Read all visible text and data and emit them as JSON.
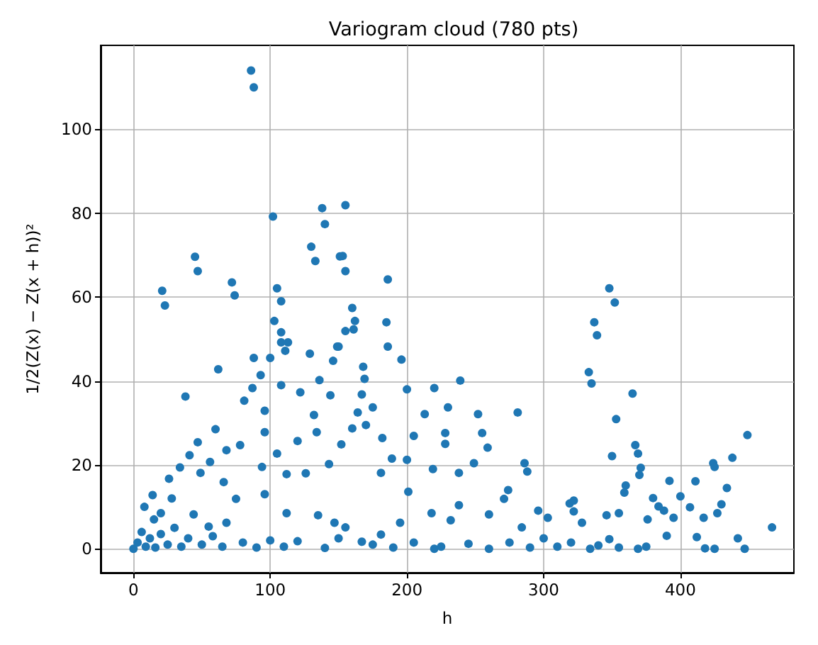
{
  "chart_data": {
    "type": "scatter",
    "title": "Variogram cloud (780 pts)",
    "xlabel": "h",
    "ylabel": "1/2(Z(x) − Z(x + h))²",
    "x": [
      86,
      88,
      102,
      138,
      140,
      130,
      133,
      151,
      45,
      47,
      21,
      23,
      72,
      74,
      105,
      108,
      103,
      108,
      108,
      113,
      111,
      129,
      149,
      88,
      100,
      146,
      155,
      153,
      155,
      186,
      160,
      162,
      161,
      155,
      185,
      150,
      186,
      196,
      348,
      352,
      337,
      339,
      38,
      62,
      60,
      47,
      41,
      14,
      26,
      34,
      93,
      87,
      81,
      96,
      96,
      108,
      122,
      136,
      132,
      144,
      134,
      78,
      68,
      105,
      120,
      56,
      49,
      94,
      66,
      75,
      68,
      55,
      20,
      44,
      112,
      112,
      126,
      135,
      147,
      143,
      96,
      168,
      169,
      167,
      164,
      175,
      200,
      220,
      239,
      230,
      213,
      252,
      281,
      205,
      228,
      255,
      259,
      228,
      286,
      288,
      238,
      249,
      219,
      189,
      200,
      182,
      170,
      160,
      152,
      181,
      201,
      218,
      238,
      260,
      271,
      274,
      296,
      284,
      303,
      319,
      155,
      195,
      181,
      232,
      167,
      220,
      333,
      335,
      365,
      353,
      367,
      369,
      350,
      371,
      370,
      449,
      438,
      424,
      425,
      434,
      411,
      392,
      400,
      380,
      360,
      359,
      384,
      388,
      395,
      376,
      355,
      346,
      322,
      322,
      328,
      407,
      417,
      430,
      427,
      412,
      418,
      425,
      442,
      447,
      467,
      390,
      369,
      348,
      334,
      0,
      3,
      6,
      9,
      12,
      16,
      20,
      25,
      30,
      35,
      40,
      50,
      58,
      65,
      80,
      90,
      100,
      110,
      120,
      140,
      150,
      175,
      190,
      205,
      225,
      245,
      260,
      275,
      290,
      300,
      310,
      320,
      340,
      355,
      375,
      8,
      15,
      28
    ],
    "values": [
      114,
      110,
      79.2,
      81.2,
      77.4,
      72,
      68.6,
      69.7,
      69.6,
      66.2,
      61.5,
      58,
      63.5,
      60.4,
      62.1,
      59,
      54.3,
      51.6,
      49.2,
      49.2,
      47.2,
      46.5,
      48.2,
      45.5,
      45.5,
      44.8,
      81.9,
      69.8,
      66.2,
      64.2,
      57.4,
      54.3,
      52.3,
      51.9,
      54,
      48.2,
      48.2,
      45.1,
      62.1,
      58.7,
      54,
      50.9,
      36.3,
      42.8,
      28.5,
      25.4,
      22.3,
      12.8,
      16.7,
      19.4,
      41.4,
      38.3,
      35.3,
      32.9,
      27.8,
      39,
      37.3,
      40.2,
      31.9,
      36.6,
      27.8,
      24.7,
      23.5,
      22.7,
      25.7,
      20.7,
      18.1,
      19.5,
      15.9,
      11.9,
      6.2,
      5.3,
      8.5,
      8.2,
      17.8,
      8.5,
      18,
      8,
      6.2,
      20.2,
      13,
      43.4,
      40.5,
      36.8,
      32.5,
      33.7,
      38,
      38.3,
      40.1,
      33.7,
      32.1,
      32.1,
      32.5,
      26.9,
      27.6,
      27.6,
      24.1,
      25,
      20.4,
      18.4,
      18.1,
      20.4,
      19,
      21.5,
      21.2,
      26.4,
      29.5,
      28.7,
      24.9,
      18.1,
      13.6,
      8.5,
      10.4,
      8.2,
      11.9,
      14,
      9.1,
      5.1,
      7.4,
      10.8,
      5.1,
      6.2,
      3.4,
      6.8,
      1.7,
      0,
      42.1,
      39.4,
      37,
      30.9,
      24.7,
      22.7,
      22.1,
      19.3,
      17.6,
      27.1,
      21.7,
      20.4,
      19.5,
      14.5,
      16.1,
      16.2,
      12.5,
      12.1,
      15.1,
      13.4,
      10.1,
      9.1,
      7.4,
      7,
      8.5,
      8,
      11.5,
      8.9,
      6.2,
      9.9,
      7.4,
      10.6,
      8.5,
      2.8,
      0.1,
      0,
      2.5,
      0,
      5.1,
      3.1,
      0,
      2.3,
      0,
      0,
      1.5,
      4,
      0.5,
      2.5,
      0.3,
      3.5,
      1,
      5,
      0.5,
      2.5,
      1,
      3,
      0.5,
      1.5,
      0.3,
      2,
      0.5,
      1.8,
      0.2,
      2.5,
      1,
      0.3,
      1.5,
      0.5,
      1.2,
      0,
      1.5,
      0.3,
      2.5,
      0.5,
      1.5,
      0.8,
      0.3,
      0.5,
      10,
      7,
      12
    ],
    "color": "#1f77b4",
    "marker": "circle",
    "xlim": [
      -24,
      483
    ],
    "xticks": [
      0,
      100,
      200,
      300,
      400
    ],
    "ylim": [
      -5.7,
      120
    ],
    "yticks": [
      0,
      20,
      40,
      60,
      80,
      100
    ],
    "grid": true
  }
}
